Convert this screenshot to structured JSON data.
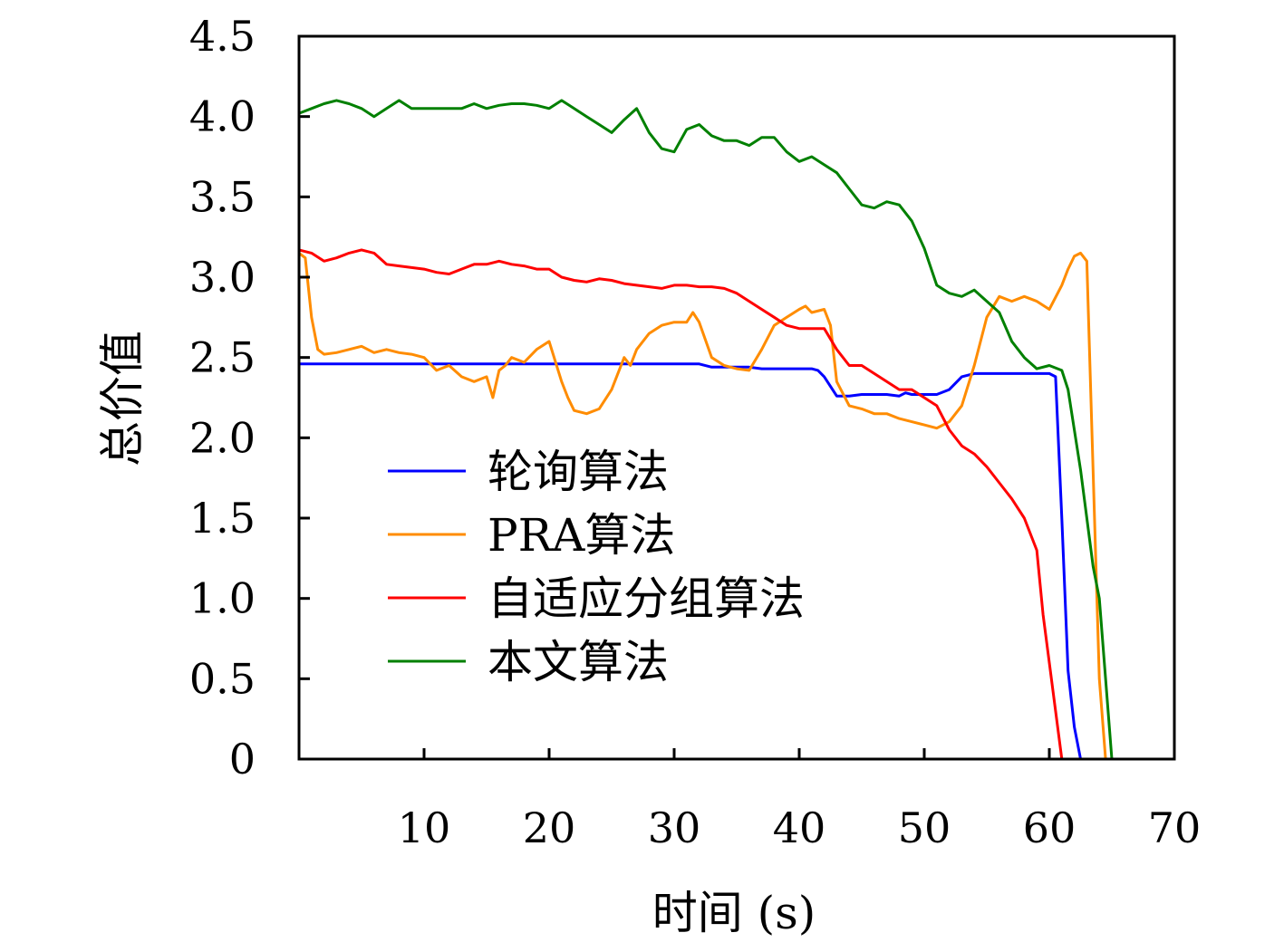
{
  "chart_data": {
    "type": "line",
    "xlabel": "时间 (s)",
    "ylabel": "总价值",
    "xlim": [
      0,
      70
    ],
    "ylim": [
      0,
      4.5
    ],
    "xticks": [
      10,
      20,
      30,
      40,
      50,
      60,
      70
    ],
    "yticks": [
      0,
      0.5,
      1.0,
      1.5,
      2.0,
      2.5,
      3.0,
      3.5,
      4.0,
      4.5
    ],
    "ytick_labels": [
      "0",
      "0.5",
      "1.0",
      "1.5",
      "2.0",
      "2.5",
      "3.0",
      "3.5",
      "4.0",
      "4.5"
    ],
    "legend_position": "lower-left",
    "grid": false,
    "series": [
      {
        "name": "轮询算法",
        "color": "#0000ff",
        "x": [
          0,
          32,
          33,
          36,
          37,
          41,
          41.5,
          42,
          43,
          44,
          45,
          47,
          48,
          48.5,
          49,
          51,
          52,
          53,
          54,
          55,
          57,
          59,
          60,
          60.5,
          61,
          61.5,
          62,
          62.5
        ],
        "y": [
          2.46,
          2.46,
          2.44,
          2.44,
          2.43,
          2.43,
          2.42,
          2.38,
          2.26,
          2.26,
          2.27,
          2.27,
          2.26,
          2.28,
          2.27,
          2.27,
          2.3,
          2.38,
          2.4,
          2.4,
          2.4,
          2.4,
          2.4,
          2.38,
          1.5,
          0.55,
          0.2,
          0
        ]
      },
      {
        "name": "PRA算法",
        "color": "#ff8c00",
        "x": [
          0,
          0.5,
          1,
          1.5,
          2,
          3,
          4,
          5,
          6,
          7,
          8,
          9,
          10,
          11,
          12,
          13,
          14,
          15,
          15.5,
          16,
          16.5,
          17,
          18,
          19,
          20,
          21,
          21.5,
          22,
          23,
          24,
          25,
          26,
          26.5,
          27,
          28,
          29,
          30,
          31,
          31.5,
          32,
          33,
          34,
          35,
          36,
          37,
          38,
          39,
          40,
          40.5,
          41,
          42,
          42.5,
          43,
          44,
          45,
          46,
          47,
          48,
          49,
          50,
          51,
          52,
          53,
          54,
          55,
          56,
          57,
          58,
          59,
          60,
          61,
          61.5,
          62,
          62.5,
          63,
          63.5,
          64,
          64.5
        ],
        "y": [
          3.15,
          3.12,
          2.75,
          2.55,
          2.52,
          2.53,
          2.55,
          2.57,
          2.53,
          2.55,
          2.53,
          2.52,
          2.5,
          2.42,
          2.45,
          2.38,
          2.35,
          2.38,
          2.25,
          2.42,
          2.45,
          2.5,
          2.47,
          2.55,
          2.6,
          2.35,
          2.25,
          2.17,
          2.15,
          2.18,
          2.3,
          2.5,
          2.45,
          2.55,
          2.65,
          2.7,
          2.72,
          2.72,
          2.78,
          2.72,
          2.5,
          2.45,
          2.43,
          2.42,
          2.55,
          2.7,
          2.75,
          2.8,
          2.82,
          2.78,
          2.8,
          2.7,
          2.35,
          2.2,
          2.18,
          2.15,
          2.15,
          2.12,
          2.1,
          2.08,
          2.06,
          2.1,
          2.2,
          2.45,
          2.75,
          2.88,
          2.85,
          2.88,
          2.85,
          2.8,
          2.95,
          3.05,
          3.13,
          3.15,
          3.1,
          1.8,
          0.5,
          0
        ]
      },
      {
        "name": "自适应分组算法",
        "color": "#ff0000",
        "x": [
          0,
          1,
          2,
          3,
          4,
          5,
          6,
          7,
          8,
          9,
          10,
          11,
          12,
          13,
          14,
          15,
          16,
          17,
          18,
          19,
          20,
          21,
          22,
          23,
          24,
          25,
          26,
          27,
          28,
          29,
          30,
          31,
          32,
          33,
          34,
          35,
          36,
          37,
          38,
          39,
          40,
          41,
          42,
          43,
          44,
          45,
          46,
          47,
          48,
          49,
          50,
          51,
          52,
          53,
          54,
          55,
          56,
          57,
          58,
          59,
          59.5,
          60,
          60.5,
          61
        ],
        "y": [
          3.17,
          3.15,
          3.1,
          3.12,
          3.15,
          3.17,
          3.15,
          3.08,
          3.07,
          3.06,
          3.05,
          3.03,
          3.02,
          3.05,
          3.08,
          3.08,
          3.1,
          3.08,
          3.07,
          3.05,
          3.05,
          3.0,
          2.98,
          2.97,
          2.99,
          2.98,
          2.96,
          2.95,
          2.94,
          2.93,
          2.95,
          2.95,
          2.94,
          2.94,
          2.93,
          2.9,
          2.85,
          2.8,
          2.75,
          2.7,
          2.68,
          2.68,
          2.68,
          2.55,
          2.45,
          2.45,
          2.4,
          2.35,
          2.3,
          2.3,
          2.25,
          2.2,
          2.05,
          1.95,
          1.9,
          1.82,
          1.72,
          1.62,
          1.5,
          1.3,
          0.9,
          0.6,
          0.3,
          0
        ]
      },
      {
        "name": "本文算法",
        "color": "#008000",
        "x": [
          0,
          1,
          2,
          3,
          4,
          5,
          6,
          7,
          8,
          9,
          10,
          11,
          12,
          13,
          14,
          15,
          16,
          17,
          18,
          19,
          20,
          21,
          22,
          23,
          24,
          25,
          26,
          27,
          28,
          29,
          30,
          31,
          32,
          33,
          34,
          35,
          36,
          37,
          38,
          39,
          40,
          41,
          42,
          43,
          44,
          45,
          46,
          47,
          48,
          49,
          50,
          51,
          52,
          53,
          54,
          55,
          56,
          57,
          58,
          59,
          60,
          61,
          61.5,
          62,
          62.5,
          63,
          63.5,
          64,
          64.5,
          65
        ],
        "y": [
          4.02,
          4.05,
          4.08,
          4.1,
          4.08,
          4.05,
          4.0,
          4.05,
          4.1,
          4.05,
          4.05,
          4.05,
          4.05,
          4.05,
          4.08,
          4.05,
          4.07,
          4.08,
          4.08,
          4.07,
          4.05,
          4.1,
          4.05,
          4.0,
          3.95,
          3.9,
          3.98,
          4.05,
          3.9,
          3.8,
          3.78,
          3.92,
          3.95,
          3.88,
          3.85,
          3.85,
          3.82,
          3.87,
          3.87,
          3.78,
          3.72,
          3.75,
          3.7,
          3.65,
          3.55,
          3.45,
          3.43,
          3.47,
          3.45,
          3.35,
          3.18,
          2.95,
          2.9,
          2.88,
          2.92,
          2.85,
          2.78,
          2.6,
          2.5,
          2.43,
          2.45,
          2.42,
          2.3,
          2.05,
          1.8,
          1.5,
          1.2,
          1.0,
          0.5,
          0
        ]
      }
    ]
  }
}
